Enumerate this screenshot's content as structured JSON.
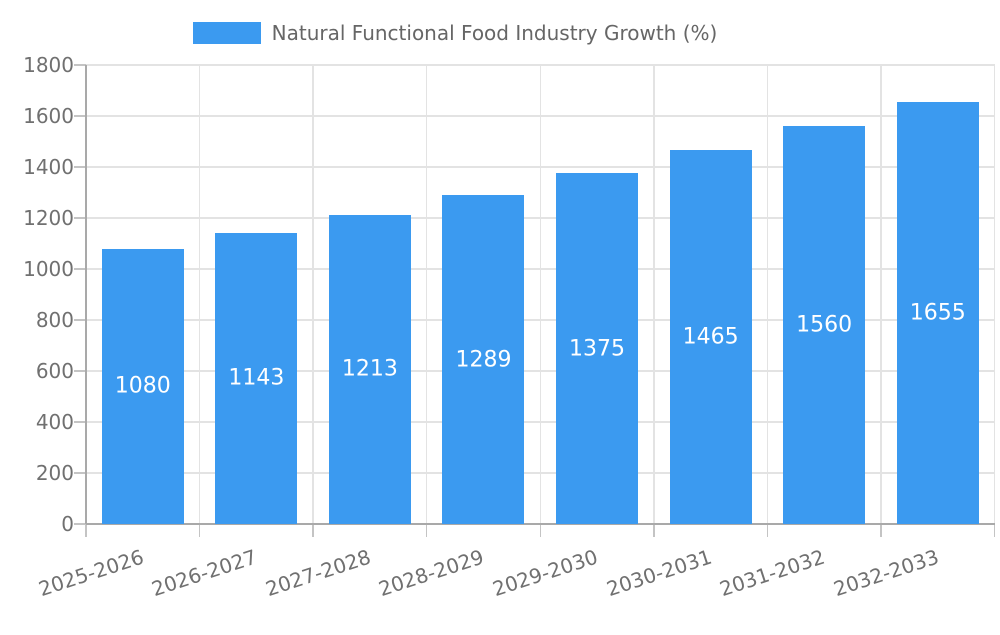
{
  "chart_data": {
    "type": "bar",
    "title": "Natural Functional Food Industry Growth (%)",
    "categories": [
      "2025-2026",
      "2026-2027",
      "2027-2028",
      "2028-2029",
      "2029-2030",
      "2030-2031",
      "2031-2032",
      "2032-2033"
    ],
    "values": [
      1080,
      1143,
      1213,
      1289,
      1375,
      1465,
      1560,
      1655
    ],
    "value_labels": [
      "1080",
      "1143",
      "1213",
      "1289",
      "1375",
      "1465",
      "1560",
      "1655"
    ],
    "xlabel": "",
    "ylabel": "",
    "ylim": [
      0,
      1800
    ],
    "yticks": [
      0,
      200,
      400,
      600,
      800,
      1000,
      1200,
      1400,
      1600,
      1800
    ],
    "grid": true,
    "legend_position": "top",
    "x_label_rotation_deg": -18,
    "colors": {
      "bar": "#3b9af0",
      "value_label": "#ffffff",
      "axis_tick_label": "#707070",
      "legend_text": "#666666",
      "gridline": "#e3e3e3",
      "axis_line": "#a9a9a9",
      "tick_mark": "#c4c4c4",
      "background": "#ffffff"
    }
  }
}
